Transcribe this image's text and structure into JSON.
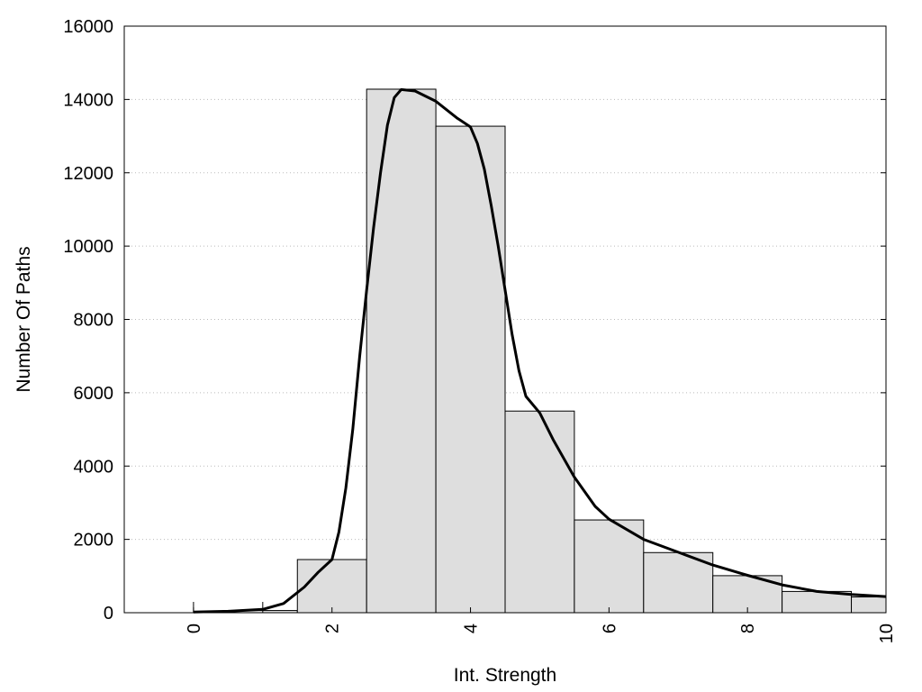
{
  "chart_data": {
    "type": "bar",
    "xlabel": "Int. Strength",
    "ylabel": "Number Of Paths",
    "xlim": [
      -1,
      10
    ],
    "ylim": [
      0,
      16000
    ],
    "x_ticks": [
      0,
      2,
      4,
      6,
      8,
      10
    ],
    "y_ticks": [
      0,
      2000,
      4000,
      6000,
      8000,
      10000,
      12000,
      14000,
      16000
    ],
    "grid": {
      "horizontal": true,
      "style": "dotted"
    },
    "bar_color": "#dedede",
    "bar_edge_color": "#000000",
    "bars": [
      {
        "x_start": 0.5,
        "x_end": 1.5,
        "value": 60
      },
      {
        "x_start": 1.5,
        "x_end": 2.5,
        "value": 1450
      },
      {
        "x_start": 2.5,
        "x_end": 3.5,
        "value": 14280
      },
      {
        "x_start": 3.5,
        "x_end": 4.5,
        "value": 13270
      },
      {
        "x_start": 4.5,
        "x_end": 5.5,
        "value": 5500
      },
      {
        "x_start": 5.5,
        "x_end": 6.5,
        "value": 2530
      },
      {
        "x_start": 6.5,
        "x_end": 7.5,
        "value": 1640
      },
      {
        "x_start": 7.5,
        "x_end": 8.5,
        "value": 1010
      },
      {
        "x_start": 8.5,
        "x_end": 9.5,
        "value": 580
      },
      {
        "x_start": 9.5,
        "x_end": 10,
        "value": 430
      }
    ],
    "curve": {
      "color": "#000000",
      "points": [
        [
          0,
          20
        ],
        [
          0.5,
          40
        ],
        [
          1.0,
          90
        ],
        [
          1.3,
          250
        ],
        [
          1.6,
          700
        ],
        [
          1.8,
          1100
        ],
        [
          2.0,
          1450
        ],
        [
          2.1,
          2200
        ],
        [
          2.2,
          3400
        ],
        [
          2.3,
          5000
        ],
        [
          2.4,
          7000
        ],
        [
          2.5,
          8800
        ],
        [
          2.6,
          10500
        ],
        [
          2.7,
          12000
        ],
        [
          2.8,
          13300
        ],
        [
          2.9,
          14050
        ],
        [
          3.0,
          14270
        ],
        [
          3.2,
          14230
        ],
        [
          3.5,
          13950
        ],
        [
          3.8,
          13500
        ],
        [
          4.0,
          13250
        ],
        [
          4.1,
          12800
        ],
        [
          4.2,
          12100
        ],
        [
          4.3,
          11100
        ],
        [
          4.4,
          10000
        ],
        [
          4.5,
          8800
        ],
        [
          4.6,
          7600
        ],
        [
          4.7,
          6600
        ],
        [
          4.8,
          5900
        ],
        [
          5.0,
          5450
        ],
        [
          5.2,
          4700
        ],
        [
          5.5,
          3700
        ],
        [
          5.8,
          2900
        ],
        [
          6.0,
          2550
        ],
        [
          6.5,
          2000
        ],
        [
          7.0,
          1650
        ],
        [
          7.5,
          1300
        ],
        [
          8.0,
          1020
        ],
        [
          8.5,
          760
        ],
        [
          9.0,
          580
        ],
        [
          9.5,
          500
        ],
        [
          10.0,
          440
        ]
      ]
    }
  }
}
